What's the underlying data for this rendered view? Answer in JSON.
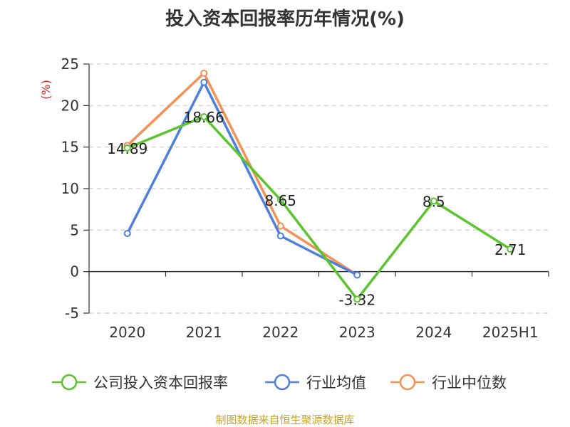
{
  "title": "投入资本回报率历年情况(%)",
  "source": "制图数据来自恒生聚源数据库",
  "chart_data": {
    "type": "line",
    "title": "投入资本回报率历年情况(%)",
    "ylabel": "(%)",
    "xlabel": "",
    "ylim": [
      -5,
      25
    ],
    "yticks": [
      -5,
      0,
      5,
      10,
      15,
      20,
      25
    ],
    "categories": [
      "2020",
      "2021",
      "2022",
      "2023",
      "2024",
      "2025H1"
    ],
    "grid": true,
    "legend_position": "bottom",
    "series": [
      {
        "name": "公司投入资本回报率",
        "color": "#5cc42e",
        "values": [
          14.89,
          18.66,
          8.65,
          -3.32,
          8.5,
          2.71
        ],
        "labels": [
          "14.89",
          "18.66",
          "8.65",
          "-3.32",
          "8.5",
          "2.71"
        ]
      },
      {
        "name": "行业均值",
        "color": "#4f7fdc",
        "values": [
          4.6,
          22.8,
          4.3,
          -0.4,
          null,
          null
        ]
      },
      {
        "name": "行业中位数",
        "color": "#f39257",
        "values": [
          15.2,
          23.9,
          5.5,
          -0.4,
          null,
          null
        ]
      }
    ]
  }
}
